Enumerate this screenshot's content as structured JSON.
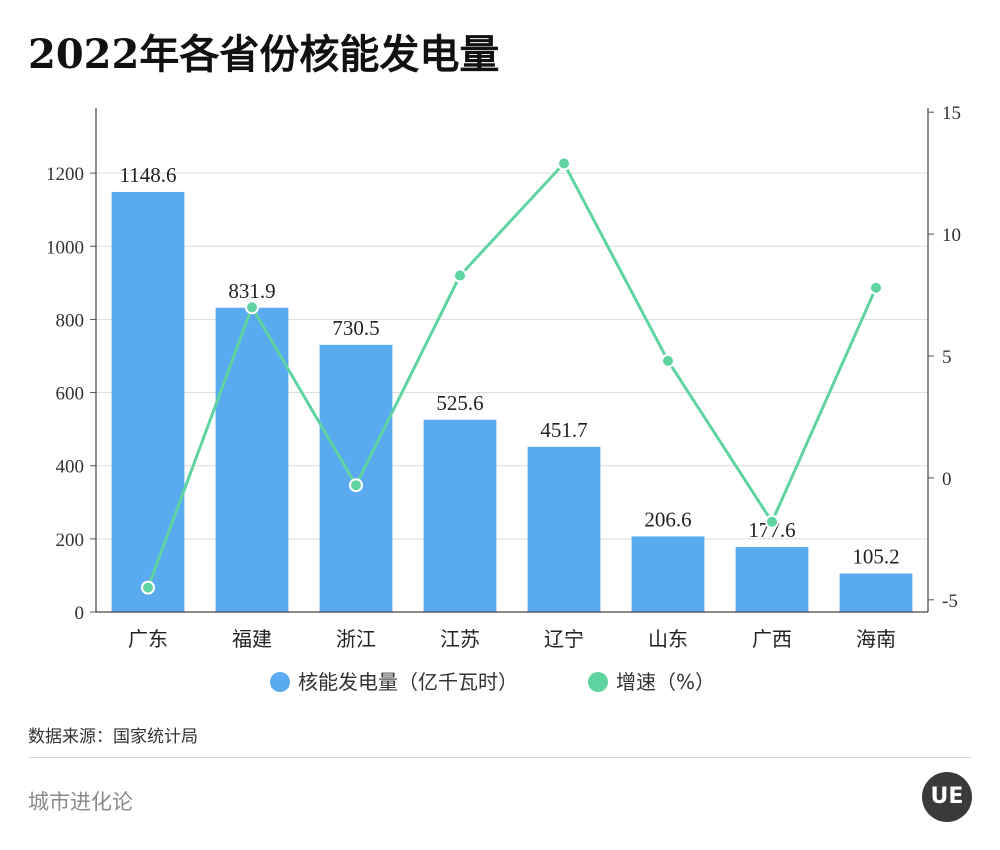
{
  "title": "2022年各省份核能发电量",
  "source": "数据来源：国家统计局",
  "brand": "城市进化论",
  "logo_text": "UE",
  "chart_data": {
    "type": "bar+line",
    "categories": [
      "广东",
      "福建",
      "浙江",
      "江苏",
      "辽宁",
      "山东",
      "广西",
      "海南"
    ],
    "series": [
      {
        "name": "核能发电量（亿千瓦时）",
        "type": "bar",
        "axis": "left",
        "color": "#5aaaf0",
        "values": [
          1148.6,
          831.9,
          730.5,
          525.6,
          451.7,
          206.6,
          177.6,
          105.2
        ],
        "labels": [
          "1148.6",
          "831.9",
          "730.5",
          "525.6",
          "451.7",
          "206.6",
          "177.6",
          "105.2"
        ]
      },
      {
        "name": "增速（%）",
        "type": "line",
        "axis": "right",
        "color": "#5fd3a0",
        "values": [
          -4.5,
          7.0,
          -0.3,
          8.3,
          12.9,
          4.8,
          -1.8,
          7.8
        ]
      }
    ],
    "left_axis": {
      "ylim": [
        0,
        1400
      ],
      "ticks": [
        0,
        200,
        400,
        600,
        800,
        1000,
        1200
      ]
    },
    "right_axis": {
      "ylim": [
        -5.5,
        15.5
      ],
      "ticks": [
        -5,
        0,
        5,
        10,
        15
      ]
    },
    "grid": true,
    "legend_position": "bottom"
  }
}
